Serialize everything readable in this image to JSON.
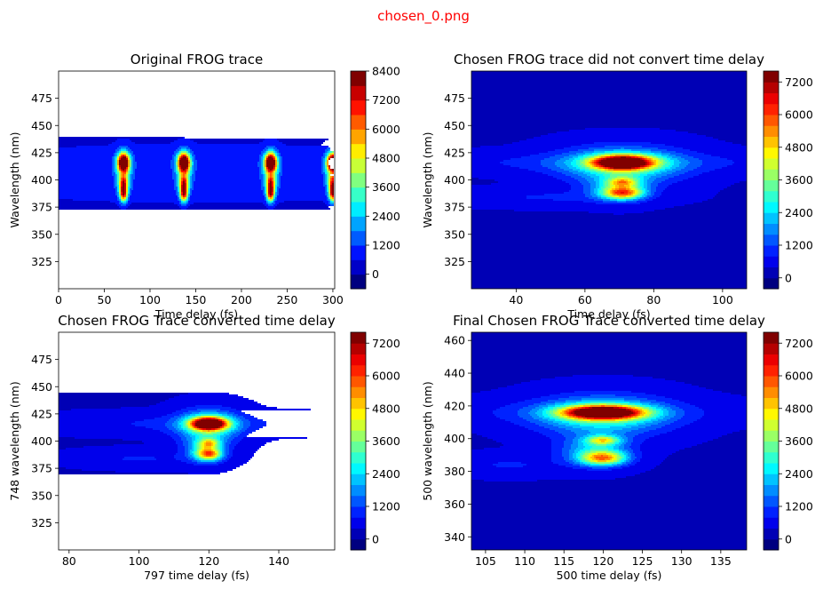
{
  "figure_title": "chosen_0.png",
  "colors": {
    "figure_title": "#ff0000",
    "jet": [
      "#00007f",
      "#0000ff",
      "#007fff",
      "#00ffff",
      "#7fff7f",
      "#ffff00",
      "#ff7f00",
      "#ff0000",
      "#7f0000"
    ]
  },
  "chart_data": [
    {
      "type": "heatmap",
      "subtype": "filled-contour",
      "title": "Original FROG trace",
      "xlabel": "Time delay (fs)",
      "ylabel": "Wavelength (nm)",
      "xlim": [
        0,
        302
      ],
      "ylim": [
        300,
        500
      ],
      "xticks": [
        0,
        50,
        100,
        150,
        200,
        250,
        300
      ],
      "yticks": [
        325,
        350,
        375,
        400,
        425,
        450,
        475
      ],
      "background_level": 0.05,
      "blobs": [
        {
          "x": 71,
          "y": 416,
          "sx": 4.5,
          "sy": 6,
          "a": 1.0
        },
        {
          "x": 71,
          "y": 397,
          "sx": 3.5,
          "sy": 5,
          "a": 0.55
        },
        {
          "x": 71,
          "y": 387,
          "sx": 3,
          "sy": 5,
          "a": 0.75
        },
        {
          "x": 71,
          "y": 408,
          "sx": 6,
          "sy": 12,
          "a": 0.3
        },
        {
          "x": 137,
          "y": 416,
          "sx": 4.5,
          "sy": 6,
          "a": 1.0
        },
        {
          "x": 137,
          "y": 397,
          "sx": 3.5,
          "sy": 5,
          "a": 0.55
        },
        {
          "x": 137,
          "y": 387,
          "sx": 3,
          "sy": 5,
          "a": 0.75
        },
        {
          "x": 137,
          "y": 408,
          "sx": 6,
          "sy": 12,
          "a": 0.3
        },
        {
          "x": 232,
          "y": 416,
          "sx": 4.5,
          "sy": 6,
          "a": 1.0
        },
        {
          "x": 232,
          "y": 397,
          "sx": 3.5,
          "sy": 5,
          "a": 0.55
        },
        {
          "x": 232,
          "y": 387,
          "sx": 3,
          "sy": 5,
          "a": 0.75
        },
        {
          "x": 232,
          "y": 408,
          "sx": 6,
          "sy": 12,
          "a": 0.3
        },
        {
          "x": 300,
          "y": 416,
          "sx": 4.5,
          "sy": 6,
          "a": 1.0
        },
        {
          "x": 300,
          "y": 397,
          "sx": 3.5,
          "sy": 5,
          "a": 0.55
        },
        {
          "x": 300,
          "y": 387,
          "sx": 3,
          "sy": 5,
          "a": 0.75
        },
        {
          "x": 300,
          "y": 408,
          "sx": 6,
          "sy": 12,
          "a": 0.3
        },
        {
          "x": 150,
          "y": 415,
          "sx": 160,
          "sy": 12,
          "a": 0.07
        },
        {
          "x": 150,
          "y": 390,
          "sx": 160,
          "sy": 8,
          "a": 0.05
        }
      ],
      "colorbar": {
        "vmin": -600,
        "vmax": 8400,
        "levels": [
          -600,
          0,
          600,
          1200,
          1800,
          2400,
          3000,
          3600,
          4200,
          4800,
          5400,
          6000,
          6600,
          7200,
          7800,
          8400
        ],
        "ticks": [
          0,
          1200,
          2400,
          3600,
          4800,
          6000,
          7200,
          8400
        ],
        "tick_labels": [
          "0",
          "1200",
          "2400",
          "3600",
          "4800",
          "6000",
          "7200",
          "8400"
        ]
      }
    },
    {
      "type": "heatmap",
      "subtype": "filled-contour",
      "title": "Chosen FROG trace did not convert time delay",
      "xlabel": "Time delay (fs)",
      "ylabel": "Wavelength (nm)",
      "xlim": [
        27,
        107
      ],
      "ylim": [
        300,
        500
      ],
      "xticks": [
        40,
        60,
        80,
        100
      ],
      "yticks": [
        325,
        350,
        375,
        400,
        425,
        450,
        475
      ],
      "background_level": 0.05,
      "blobs": [
        {
          "x": 71,
          "y": 416,
          "sx": 6,
          "sy": 4.5,
          "a": 1.0
        },
        {
          "x": 71,
          "y": 414,
          "sx": 12,
          "sy": 11,
          "a": 0.35
        },
        {
          "x": 71,
          "y": 398,
          "sx": 3,
          "sy": 3,
          "a": 0.35
        },
        {
          "x": 71,
          "y": 388,
          "sx": 4,
          "sy": 4,
          "a": 0.55
        },
        {
          "x": 70,
          "y": 393,
          "sx": 6,
          "sy": 8,
          "a": 0.25
        },
        {
          "x": 67,
          "y": 416,
          "sx": 40,
          "sy": 6,
          "a": 0.07
        },
        {
          "x": 50,
          "y": 384,
          "sx": 18,
          "sy": 5,
          "a": 0.06
        }
      ],
      "colorbar": {
        "vmin": -400,
        "vmax": 7600,
        "levels": [
          -400,
          0,
          400,
          800,
          1200,
          1600,
          2000,
          2400,
          2800,
          3200,
          3600,
          4000,
          4400,
          4800,
          5200,
          5600,
          6000,
          6400,
          6800,
          7200,
          7600
        ],
        "ticks": [
          0,
          1200,
          2400,
          3600,
          4800,
          6000,
          7200
        ],
        "tick_labels": [
          "0",
          "1200",
          "2400",
          "3600",
          "4800",
          "6000",
          "7200"
        ]
      }
    },
    {
      "type": "heatmap",
      "subtype": "filled-contour",
      "title": "Chosen FROG Trace converted time delay",
      "xlabel": "797 time delay (fs)",
      "ylabel": "748 wavelength (nm)",
      "xlim": [
        77,
        156
      ],
      "ylim": [
        300,
        500
      ],
      "xticks": [
        80,
        100,
        120,
        140
      ],
      "yticks": [
        325,
        350,
        375,
        400,
        425,
        450,
        475
      ],
      "background_level": 0.05,
      "blobs": [
        {
          "x": 120,
          "y": 416,
          "sx": 3.5,
          "sy": 4,
          "a": 1.0
        },
        {
          "x": 120,
          "y": 414,
          "sx": 6,
          "sy": 10,
          "a": 0.35
        },
        {
          "x": 120,
          "y": 398,
          "sx": 2,
          "sy": 3,
          "a": 0.35
        },
        {
          "x": 120,
          "y": 388,
          "sx": 2.5,
          "sy": 4,
          "a": 0.55
        },
        {
          "x": 119,
          "y": 393,
          "sx": 4,
          "sy": 8,
          "a": 0.25
        },
        {
          "x": 115,
          "y": 416,
          "sx": 25,
          "sy": 6,
          "a": 0.07
        },
        {
          "x": 100,
          "y": 384,
          "sx": 12,
          "sy": 5,
          "a": 0.06
        }
      ],
      "colorbar": {
        "vmin": -400,
        "vmax": 7600,
        "levels": [
          -400,
          0,
          400,
          800,
          1200,
          1600,
          2000,
          2400,
          2800,
          3200,
          3600,
          4000,
          4400,
          4800,
          5200,
          5600,
          6000,
          6400,
          6800,
          7200,
          7600
        ],
        "ticks": [
          0,
          1200,
          2400,
          3600,
          4800,
          6000,
          7200
        ],
        "tick_labels": [
          "0",
          "1200",
          "2400",
          "3600",
          "4800",
          "6000",
          "7200"
        ]
      }
    },
    {
      "type": "heatmap",
      "subtype": "filled-contour",
      "title": "Final Chosen FROG Trace converted time delay",
      "xlabel": "500 time delay (fs)",
      "ylabel": "500 wavelength (nm)",
      "xlim": [
        103.2,
        138.3
      ],
      "ylim": [
        332,
        465
      ],
      "xticks": [
        105,
        110,
        115,
        120,
        125,
        130,
        135
      ],
      "yticks": [
        340,
        360,
        380,
        400,
        420,
        440,
        460
      ],
      "background_level": 0.05,
      "blobs": [
        {
          "x": 120,
          "y": 416,
          "sx": 3.5,
          "sy": 2.8,
          "a": 1.0
        },
        {
          "x": 120,
          "y": 414,
          "sx": 5.5,
          "sy": 8,
          "a": 0.35
        },
        {
          "x": 120,
          "y": 399,
          "sx": 1.5,
          "sy": 2,
          "a": 0.4
        },
        {
          "x": 120,
          "y": 388,
          "sx": 2,
          "sy": 3,
          "a": 0.55
        },
        {
          "x": 119,
          "y": 393,
          "sx": 3,
          "sy": 6,
          "a": 0.25
        },
        {
          "x": 118,
          "y": 416,
          "sx": 12,
          "sy": 5,
          "a": 0.07
        },
        {
          "x": 108,
          "y": 384,
          "sx": 5,
          "sy": 4,
          "a": 0.06
        }
      ],
      "colorbar": {
        "vmin": -400,
        "vmax": 7600,
        "levels": [
          -400,
          0,
          400,
          800,
          1200,
          1600,
          2000,
          2400,
          2800,
          3200,
          3600,
          4000,
          4400,
          4800,
          5200,
          5600,
          6000,
          6400,
          6800,
          7200,
          7600
        ],
        "ticks": [
          0,
          1200,
          2400,
          3600,
          4800,
          6000,
          7200
        ],
        "tick_labels": [
          "0",
          "1200",
          "2400",
          "3600",
          "4800",
          "6000",
          "7200"
        ]
      }
    }
  ]
}
